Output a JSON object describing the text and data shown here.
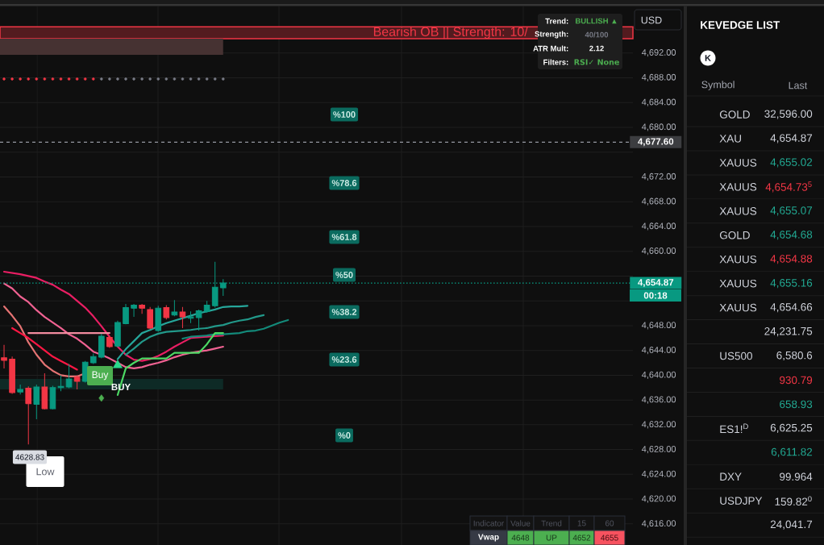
{
  "chart_data": [
    {
      "type": "candlestick",
      "categories": [
        null,
        null,
        null,
        null,
        null,
        null,
        null,
        null,
        null,
        null,
        null,
        null,
        null,
        null,
        null,
        null,
        null,
        null,
        null,
        null,
        null,
        null,
        null,
        null,
        null,
        null,
        null,
        null,
        null,
        null,
        null,
        null,
        null,
        null,
        null,
        null,
        null,
        null,
        null,
        null,
        null,
        null,
        null,
        null,
        null,
        null,
        null,
        null,
        null,
        null,
        null,
        null,
        null,
        null,
        null,
        null,
        null,
        null,
        null,
        null,
        null,
        null,
        null,
        null,
        null,
        null,
        null,
        null,
        null,
        null,
        null,
        null,
        null,
        null,
        null,
        null,
        null,
        null
      ],
      "ohlc": [
        [
          4642.8,
          4644.9,
          4641.1,
          4642.4
        ],
        [
          4642.6,
          4643.0,
          4637.0,
          4637.2
        ],
        [
          4637.3,
          4638.5,
          4636.9,
          4637.7
        ],
        [
          4637.9,
          4638.2,
          4628.83,
          4635.4
        ],
        [
          4635.3,
          4638.5,
          4632.9,
          4638.1
        ],
        [
          4638.1,
          4640.3,
          4634.5,
          4634.6
        ],
        [
          4634.6,
          4638.3,
          4634.5,
          4638.0
        ],
        [
          4638.0,
          4640.0,
          4637.4,
          4638.2
        ],
        [
          4638.1,
          4641.8,
          4637.9,
          4639.4
        ],
        [
          4639.7,
          4640.0,
          4637.7,
          4639.0
        ],
        [
          4639.0,
          4642.3,
          4638.8,
          4642.1
        ],
        [
          4642.0,
          4643.5,
          4641.8,
          4643.0
        ],
        [
          4642.9,
          4646.7,
          4642.7,
          4646.3
        ],
        [
          4646.1,
          4646.4,
          4644.4,
          4644.6
        ],
        [
          4644.7,
          4648.8,
          4644.5,
          4648.5
        ],
        [
          4648.3,
          4651.5,
          4648.2,
          4650.9
        ],
        [
          4650.8,
          4651.5,
          4649.4,
          4651.3
        ],
        [
          4651.3,
          4651.5,
          4649.9,
          4650.8
        ],
        [
          4650.6,
          4651.0,
          4647.4,
          4647.6
        ],
        [
          4647.2,
          4651.2,
          4647.0,
          4650.8
        ],
        [
          4650.9,
          4651.3,
          4649.0,
          4649.3
        ],
        [
          4649.7,
          4652.1,
          4649.5,
          4650.2
        ],
        [
          4650.2,
          4651.0,
          4647.6,
          4649.4
        ],
        [
          4649.2,
          4650.3,
          4648.4,
          4649.4
        ],
        [
          4649.3,
          4650.6,
          4647.2,
          4650.4
        ],
        [
          4650.3,
          4652.0,
          4650.1,
          4651.3
        ],
        [
          4651.2,
          4658.3,
          4650.9,
          4654.2
        ],
        [
          4654.1,
          4655.5,
          4652.8,
          4654.87
        ],
        null,
        null,
        null,
        null,
        null,
        null,
        null,
        null,
        null,
        null,
        null,
        null,
        null,
        null,
        null,
        null,
        null,
        null,
        null,
        null,
        null,
        null,
        null,
        null,
        null,
        null,
        null,
        null,
        null,
        null,
        null,
        null,
        null,
        null,
        null,
        null,
        null,
        null,
        null,
        null,
        null,
        null,
        null,
        null,
        null,
        null,
        null,
        null,
        null,
        null
      ],
      "colors": [
        "#f23645",
        "#f23645",
        "#089981",
        "#f23645",
        "#089981",
        "#f23645",
        "#089981",
        "#089981",
        "#089981",
        "#f23645",
        "#089981",
        "#089981",
        "#089981",
        "#f23645",
        "#089981",
        "#089981",
        "#089981",
        "#f23645",
        "#f23645",
        "#089981",
        "#f23645",
        "#089981",
        "#f23645",
        "#089981",
        "#089981",
        "#089981",
        "#089981",
        "#089981",
        null,
        null,
        null,
        null,
        null,
        null,
        null,
        null,
        null,
        null,
        null,
        null,
        null,
        null,
        null,
        null,
        null,
        null,
        null,
        null,
        null,
        null,
        null,
        null,
        null,
        null,
        null,
        null,
        null,
        null,
        null,
        null,
        null,
        null,
        null,
        null,
        null,
        null,
        null,
        null,
        null,
        null,
        null,
        null,
        null,
        null,
        null,
        null,
        null,
        null
      ],
      "series": [
        {
          "type": "line",
          "color": "#e91e63",
          "values": [
            4656.7,
            4656.5,
            4656.3,
            4656.0,
            4655.7,
            4655.1,
            4654.6,
            4653.8,
            4653.1,
            4652.0,
            4650.9,
            4649.5,
            4647.9,
            4646.2,
            4644.6,
            4643.3,
            4642.5,
            4642.3,
            4642.6,
            4643.1,
            4643.8,
            4644.6,
            4645.3,
            4646.0,
            4646.1,
            4646.2,
            4646.3,
            4646.4,
            null,
            null,
            null,
            null,
            null,
            null,
            null,
            null,
            null,
            null,
            null,
            null,
            null,
            null,
            null,
            null,
            null,
            null,
            null,
            null,
            null,
            null,
            null,
            null,
            null,
            null,
            null,
            null,
            null,
            null,
            null,
            null,
            null,
            null,
            null,
            null,
            null,
            null,
            null,
            null,
            null,
            null,
            null,
            null,
            null,
            null,
            null,
            null,
            null,
            null
          ]
        },
        {
          "type": "line",
          "color": "#f06292",
          "values": [
            4654.8,
            4654.0,
            4652.7,
            4651.8,
            4650.5,
            4649.4,
            4648.5,
            4647.6,
            4646.6,
            4645.9,
            4644.9,
            4643.8,
            4643.3,
            4642.7,
            4642.0,
            4641.3,
            4641.1,
            4641.3,
            4641.7,
            4642.0,
            4642.4,
            4642.9,
            4643.3,
            4643.6,
            4643.8,
            4644.0,
            4644.3,
            4644.6,
            null,
            null,
            null,
            null,
            null,
            null,
            null,
            null,
            null,
            null,
            null,
            null,
            null,
            null,
            null,
            null,
            null,
            null,
            null,
            null,
            null,
            null,
            null,
            null,
            null,
            null,
            null,
            null,
            null,
            null,
            null,
            null,
            null,
            null,
            null,
            null,
            null,
            null,
            null,
            null,
            null,
            null,
            null,
            null,
            null,
            null,
            null,
            null,
            null,
            null
          ]
        },
        {
          "type": "line",
          "color": "#e57373",
          "values": [
            4651.1,
            4649.6,
            4647.9,
            4645.3,
            4643.3,
            4641.7,
            4640.7,
            4640.0,
            4639.8,
            4639.8,
            4640.3,
            null,
            null,
            null,
            null,
            null,
            null,
            null,
            null,
            null,
            null,
            null,
            null,
            null,
            null,
            null,
            null,
            null,
            null,
            null,
            null,
            null,
            null,
            null,
            null,
            null,
            null,
            null,
            null,
            null,
            null,
            null,
            null,
            null,
            null,
            null,
            null,
            null,
            null,
            null,
            null,
            null,
            null,
            null,
            null,
            null,
            null,
            null,
            null,
            null,
            null,
            null,
            null,
            null,
            null,
            null,
            null,
            null,
            null,
            null,
            null,
            null,
            null,
            null,
            null,
            null,
            null,
            null
          ]
        },
        {
          "type": "line",
          "color": "#ff1744",
          "values": [
            null,
            4647.6,
            4646.8,
            4646.0,
            4645.0,
            4644.0,
            4643.0,
            4642.3,
            4641.6,
            4640.9,
            null,
            null,
            null,
            null,
            null,
            null,
            null,
            null,
            null,
            null,
            null,
            null,
            null,
            null,
            null,
            null,
            null,
            null,
            null,
            null,
            null,
            null,
            null,
            null,
            null,
            null,
            null,
            null,
            null,
            null,
            null,
            null,
            null,
            null,
            null,
            null,
            null,
            null,
            null,
            null,
            null,
            null,
            null,
            null,
            null,
            null,
            null,
            null,
            null,
            null,
            null,
            null,
            null,
            null,
            null,
            null,
            null,
            null,
            null,
            null,
            null,
            null,
            null,
            null,
            null,
            null,
            null,
            null
          ]
        },
        {
          "type": "line",
          "color": "#f28b9f",
          "values": [
            null,
            null,
            null,
            4646.8,
            4646.8,
            4646.8,
            4646.8,
            4646.8,
            4646.8,
            4646.8,
            4646.8,
            4646.8,
            4646.8,
            4646.8,
            null,
            null,
            null,
            null,
            null,
            null,
            null,
            null,
            null,
            null,
            null,
            null,
            null,
            null,
            null,
            null,
            null,
            null,
            null,
            null,
            null,
            null,
            null,
            null,
            null,
            null,
            null,
            null,
            null,
            null,
            null,
            null,
            null,
            null,
            null,
            null,
            null,
            null,
            null,
            null,
            null,
            null,
            null,
            null,
            null,
            null,
            null,
            null,
            null,
            null,
            null,
            null,
            null,
            null,
            null,
            null,
            null,
            null,
            null,
            null,
            null,
            null,
            null,
            null
          ]
        },
        {
          "type": "line",
          "color": "#26a69a",
          "values": [
            null,
            null,
            null,
            null,
            null,
            null,
            null,
            null,
            null,
            null,
            null,
            null,
            null,
            null,
            4642.6,
            4644.2,
            4645.5,
            4646.8,
            4647.3,
            4647.9,
            4648.4,
            4648.8,
            4649.2,
            4649.6,
            4650.0,
            4650.3,
            4650.6,
            4651.0,
            4651.1,
            4651.1,
            4651.2,
            null,
            null,
            null,
            null,
            null,
            null,
            null,
            null,
            null,
            null,
            null,
            null,
            null,
            null,
            null,
            null,
            null,
            null,
            null,
            null,
            null,
            null,
            null,
            null,
            null,
            null,
            null,
            null,
            null,
            null,
            null,
            null,
            null,
            null,
            null,
            null,
            null,
            null,
            null,
            null,
            null,
            null,
            null,
            null,
            null,
            null,
            null
          ]
        },
        {
          "type": "line",
          "color": "#22998a",
          "values": [
            null,
            null,
            null,
            null,
            null,
            null,
            null,
            null,
            null,
            null,
            null,
            null,
            null,
            null,
            null,
            4643.3,
            4644.3,
            4645.4,
            4646.2,
            4646.7,
            4647.0,
            4647.1,
            4647.2,
            4647.3,
            4647.5,
            4647.6,
            4647.9,
            4648.1,
            4648.5,
            4648.8,
            4649.0,
            4649.4,
            4649.7,
            null,
            null,
            null,
            null,
            null,
            null,
            null,
            null,
            null,
            null,
            null,
            null,
            null,
            null,
            null,
            null,
            null,
            null,
            null,
            null,
            null,
            null,
            null,
            null,
            null,
            null,
            null,
            null,
            null,
            null,
            null,
            null,
            null,
            null,
            null,
            null,
            null,
            null,
            null,
            null,
            null,
            null,
            null,
            null,
            null
          ]
        },
        {
          "type": "line",
          "color": "#138a7a",
          "values": [
            null,
            null,
            null,
            null,
            null,
            null,
            null,
            null,
            null,
            null,
            null,
            null,
            null,
            null,
            null,
            null,
            null,
            null,
            null,
            null,
            null,
            null,
            4645.9,
            4646.2,
            4646.3,
            4646.4,
            4646.6,
            4646.6,
            4646.7,
            4646.8,
            4647.1,
            4647.2,
            4647.5,
            4648.0,
            4648.5,
            4648.9,
            null,
            null,
            null,
            null,
            null,
            null,
            null,
            null,
            null,
            null,
            null,
            null,
            null,
            null,
            null,
            null,
            null,
            null,
            null,
            null,
            null,
            null,
            null,
            null,
            null,
            null,
            null,
            null,
            null,
            null,
            null,
            null,
            null,
            null,
            null,
            null,
            null,
            null,
            null,
            null,
            null,
            null
          ]
        },
        {
          "type": "line",
          "color": "#4cd964",
          "values": [
            null,
            null,
            null,
            null,
            null,
            null,
            null,
            null,
            null,
            null,
            null,
            null,
            null,
            null,
            4636.8,
            4641.1,
            4642.0,
            4642.7,
            4642.7,
            4642.7,
            4642.7,
            4643.6,
            4643.6,
            4643.6,
            4643.6,
            4645.0,
            4646.8,
            4646.8,
            null,
            null,
            null,
            null,
            null,
            null,
            null,
            null,
            null,
            null,
            null,
            null,
            null,
            null,
            null,
            null,
            null,
            null,
            null,
            null,
            null,
            null,
            null,
            null,
            null,
            null,
            null,
            null,
            null,
            null,
            null,
            null,
            null,
            null,
            null,
            null,
            null,
            null,
            null,
            null,
            null,
            null,
            null,
            null,
            null,
            null,
            null,
            null,
            null,
            null
          ]
        },
        {
          "type": "scatter",
          "marker": "circle",
          "colors": [
            "#f23645",
            "#f23645",
            "#f23645",
            "#f23645",
            "#f23645",
            "#f23645",
            "#f23645",
            "#f23645",
            "#f23645",
            "#f23645",
            "#f23645",
            "#f23645",
            "#787b86",
            "#787b86",
            "#787b86",
            "#787b86",
            "#787b86",
            "#787b86",
            "#787b86",
            "#787b86",
            "#787b86",
            "#787b86",
            "#787b86",
            "#787b86",
            "#787b86",
            "#787b86",
            "#787b86",
            "#787b86",
            null,
            null,
            null,
            null,
            null,
            null,
            null,
            null,
            null,
            null,
            null,
            null,
            null,
            null,
            null,
            null,
            null,
            null,
            null,
            null,
            null,
            null,
            null,
            null,
            null,
            null,
            null,
            null,
            null,
            null,
            null,
            null,
            null,
            null,
            null,
            null,
            null,
            null,
            null,
            null,
            null,
            null,
            null,
            null,
            null,
            null,
            null,
            null,
            null,
            null
          ],
          "values": [
            4687.8,
            4687.8,
            4687.8,
            4687.8,
            4687.8,
            4687.8,
            4687.8,
            4687.8,
            4687.8,
            4687.8,
            4687.8,
            4687.8,
            4687.8,
            4687.8,
            4687.8,
            4687.8,
            4687.8,
            4687.8,
            4687.8,
            4687.8,
            4687.8,
            4687.8,
            4687.8,
            4687.8,
            4687.8,
            4687.8,
            4687.8,
            4687.8,
            null,
            null,
            null,
            null,
            null,
            null,
            null,
            null,
            null,
            null,
            null,
            null,
            null,
            null,
            null,
            null,
            null,
            null,
            null,
            null,
            null,
            null,
            null,
            null,
            null,
            null,
            null,
            null,
            null,
            null,
            null,
            null,
            null,
            null,
            null,
            null,
            null,
            null,
            null,
            null,
            null,
            null,
            null,
            null,
            null,
            null,
            null,
            null,
            null,
            null
          ]
        },
        {
          "type": "scatter",
          "marker": "diamond",
          "color": "#4caf50",
          "values": [
            null,
            null,
            null,
            null,
            null,
            null,
            null,
            null,
            null,
            null,
            null,
            null,
            4636.3,
            null,
            null,
            null,
            null,
            null,
            null,
            null,
            null,
            null,
            null,
            null,
            null,
            null,
            null,
            null,
            null,
            null,
            null,
            null,
            null,
            null,
            null,
            null,
            null,
            null,
            null,
            null,
            null,
            null,
            null,
            null,
            null,
            null,
            null,
            null,
            null,
            null,
            null,
            null,
            null,
            null,
            null,
            null,
            null,
            null,
            null,
            null,
            null,
            null,
            null,
            null,
            null,
            null,
            null,
            null,
            null,
            null,
            null,
            null,
            null,
            null,
            null,
            null,
            null,
            null
          ]
        },
        {
          "type": "scatter",
          "marker": "triangle",
          "color": "#2bd98c",
          "values": [
            null,
            null,
            null,
            null,
            null,
            null,
            null,
            null,
            null,
            null,
            null,
            null,
            null,
            null,
            4641.6,
            null,
            null,
            null,
            null,
            null,
            null,
            null,
            null,
            null,
            null,
            null,
            null,
            null,
            null,
            null,
            null,
            null,
            null,
            null,
            null,
            null,
            null,
            null,
            null,
            null,
            null,
            null,
            null,
            null,
            null,
            null,
            null,
            null,
            null,
            null,
            null,
            null,
            null,
            null,
            null,
            null,
            null,
            null,
            null,
            null,
            null,
            null,
            null,
            null,
            null,
            null,
            null,
            null,
            null,
            null,
            null,
            null,
            null,
            null,
            null,
            null,
            null,
            null
          ]
        }
      ],
      "ylim": [
        4612.6,
        4699.5
      ],
      "yticks": [
        {
          "value": 4616,
          "label": "4,616.00"
        },
        {
          "value": 4620,
          "label": "4,620.00"
        },
        {
          "value": 4624,
          "label": "4,624.00"
        },
        {
          "value": 4628,
          "label": "4,628.00"
        },
        {
          "value": 4632,
          "label": "4,632.00"
        },
        {
          "value": 4636,
          "label": "4,636.00"
        },
        {
          "value": 4640,
          "label": "4,640.00"
        },
        {
          "value": 4644,
          "label": "4,644.00"
        },
        {
          "value": 4648,
          "label": "4,648.00"
        },
        {
          "value": 4652,
          "label": null
        },
        {
          "value": 4656,
          "label": null
        },
        {
          "value": 4660,
          "label": "4,660.00"
        },
        {
          "value": 4664,
          "label": "4,664.00"
        },
        {
          "value": 4668,
          "label": "4,668.00"
        },
        {
          "value": 4672,
          "label": "4,672.00"
        },
        {
          "value": 4676,
          "label": null
        },
        {
          "value": 4680,
          "label": "4,680.00"
        },
        {
          "value": 4684,
          "label": "4,684.00"
        },
        {
          "value": 4688,
          "label": "4,688.00"
        },
        {
          "value": 4692,
          "label": "4,692.00"
        }
      ],
      "tick_labels": "y",
      "grid": true,
      "ref_lines": [
        {
          "axis": "y",
          "value": 4677.6,
          "label": "4,677.60",
          "line_style": "dashed",
          "color": "#9598a1"
        },
        {
          "axis": "y",
          "value": 4654.87,
          "label": "4,654.87",
          "line_style": "dotted",
          "color": "#089981"
        }
      ],
      "bands": [
        {
          "axis": "y",
          "from": 4694.3,
          "to": 4696.2,
          "label": "Bearish OB || Strength: 10/",
          "color": "#f23645"
        },
        {
          "axis": "y",
          "from": 4691.7,
          "to": 4694.3,
          "color": "#463232"
        },
        {
          "axis": "y",
          "from": 4637.7,
          "to": 4639.4,
          "color": "#0e2a26"
        }
      ],
      "annotations": [
        "%100",
        "%78.6",
        "%61.8",
        "%50",
        "%38.2",
        "%23.6",
        "%0",
        "Buy",
        "BUY",
        "4628.83",
        "Low",
        "00:18",
        "USD",
        "Trend:",
        "BULLISH ▲",
        "Strength:",
        "40/100",
        "ATR Mult:",
        "2.12",
        "Filters:",
        "RSI✓ None",
        "Indicator",
        "Value",
        "Trend",
        "15",
        "60",
        "Vwap",
        "4648",
        "UP",
        "4652",
        "4655"
      ]
    },
    {
      "type": "other",
      "title": "KEVEDGE LIST",
      "annotations": [
        "K",
        "Symbol",
        "Last"
      ],
      "categories": [
        "GOLD",
        "XAU",
        "XAUUS",
        "XAUUS",
        "XAUUS",
        "GOLD",
        "XAUUS",
        "XAUUS",
        "XAUUS",
        null,
        "US500",
        null,
        null,
        "ES1!$^{D}$",
        null,
        "DXY",
        "USDJPY",
        null
      ],
      "value_labels": [
        "32,596.00",
        "4,654.87",
        "4,655.02",
        "4,654.73$^{5}$",
        "4,655.07",
        "4,654.68",
        "4,654.88",
        "4,655.16",
        "4,654.66",
        "24,231.75",
        "6,580.6",
        "930.79",
        "658.93",
        "6,625.25",
        "6,611.82",
        "99.964",
        "159.82$^{0}$",
        "24,041.7"
      ],
      "colors": [
        "#d1d4dc",
        "#d1d4dc",
        "#22ab94",
        "#f23645",
        "#22ab94",
        "#22ab94",
        "#f23645",
        "#22ab94",
        "#d1d4dc",
        "#d1d4dc",
        "#d1d4dc",
        "#f23645",
        "#22ab94",
        "#d1d4dc",
        "#22ab94",
        "#d1d4dc",
        "#d1d4dc",
        "#d1d4dc"
      ]
    }
  ]
}
